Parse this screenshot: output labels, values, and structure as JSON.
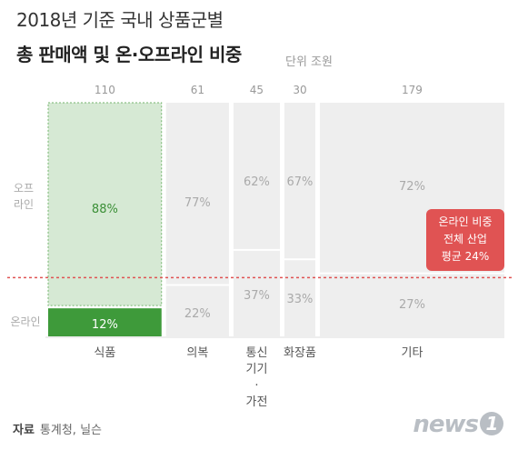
{
  "title": {
    "line1": "2018년 기준 국내 상품군별",
    "line2": "총 판매액 및 온·오프라인 비중",
    "unit": "단위  조원"
  },
  "chart_data": {
    "type": "bar",
    "subtype": "marimekko",
    "categories": [
      "식품",
      "의복",
      "통신 기기 · 가전",
      "화장품",
      "기타"
    ],
    "category_label_lines": [
      [
        "식품"
      ],
      [
        "의복"
      ],
      [
        "통신",
        "기기",
        "·",
        "가전"
      ],
      [
        "화장품"
      ],
      [
        "기타"
      ]
    ],
    "totals": [
      110,
      61,
      45,
      30,
      179
    ],
    "series": [
      {
        "name": "오프라인",
        "values": [
          88,
          77,
          62,
          67,
          72
        ]
      },
      {
        "name": "온라인",
        "values": [
          12,
          22,
          37,
          33,
          27
        ]
      }
    ],
    "value_labels": {
      "offline": [
        "88%",
        "77%",
        "62%",
        "67%",
        "72%"
      ],
      "online": [
        "12%",
        "22%",
        "37%",
        "33%",
        "27%"
      ]
    },
    "ylim": [
      0,
      100
    ],
    "reference_line": {
      "value": 24,
      "label": [
        "온라인 비중",
        "전체 산업",
        "평균 24%"
      ]
    },
    "axis_labels": {
      "offline": [
        "오프",
        "라인"
      ],
      "online": "온라인"
    },
    "highlight_index": 0,
    "colors": {
      "bar": "#eeeeee",
      "highlight_offline": "#d6e9d4",
      "highlight_offline_border": "#74b46e",
      "highlight_online": "#3e9a3a",
      "highlight_text": "#3b8f36",
      "label_text": "#aaaaaa",
      "reference": "#e05353"
    }
  },
  "source": {
    "label": "자료",
    "text": "통계청, 닐슨"
  },
  "logo": {
    "text": "news",
    "mark": "1"
  }
}
